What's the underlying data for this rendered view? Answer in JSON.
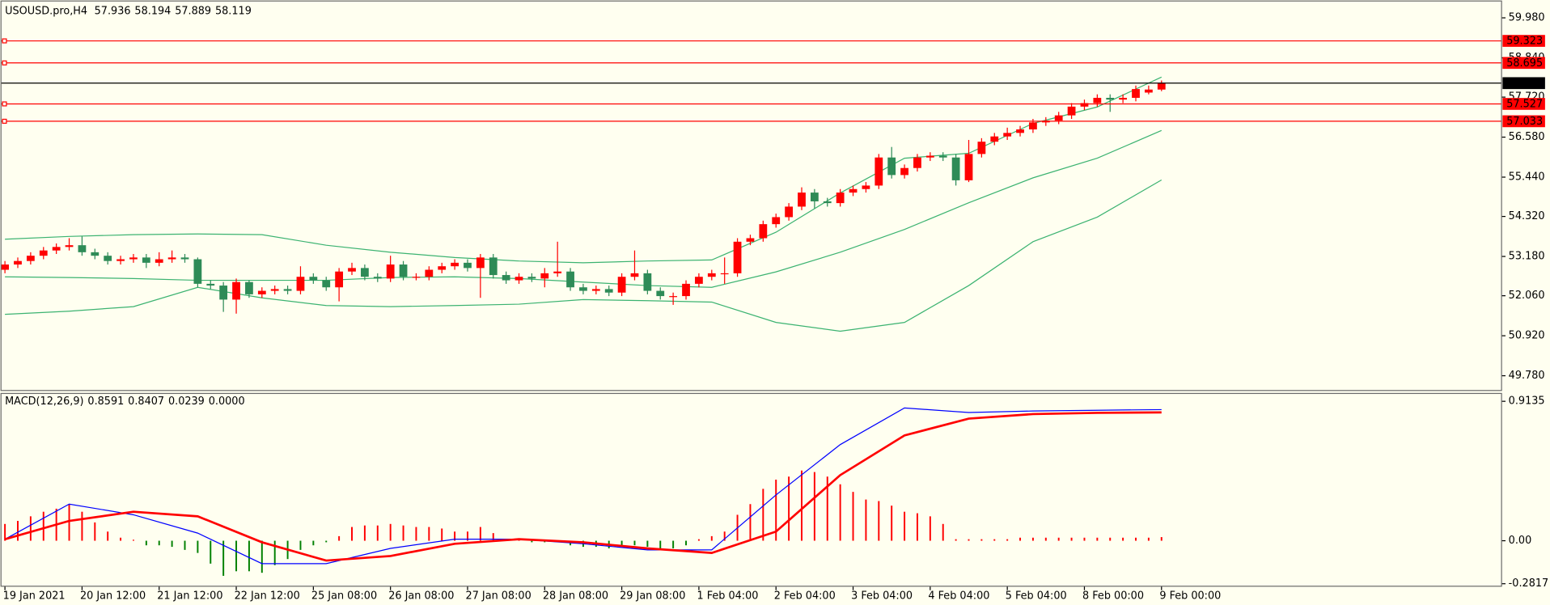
{
  "chart_data": [
    {
      "type": "candlestick",
      "title": "USOUSD.pro,H4",
      "categories": [
        "19 Jan 2021",
        null,
        null,
        null,
        null,
        null,
        "20 Jan 12:00",
        null,
        null,
        null,
        null,
        null,
        "21 Jan 12:00",
        null,
        null,
        null,
        null,
        null,
        "22 Jan 12:00",
        null,
        null,
        null,
        null,
        null,
        "25 Jan 08:00",
        null,
        null,
        null,
        null,
        null,
        "26 Jan 08:00",
        null,
        null,
        null,
        null,
        null,
        "27 Jan 08:00",
        null,
        null,
        null,
        null,
        null,
        "28 Jan 08:00",
        null,
        null,
        null,
        null,
        null,
        "29 Jan 08:00",
        null,
        null,
        null,
        null,
        null,
        "1 Feb 04:00",
        null,
        null,
        null,
        null,
        null,
        "2 Feb 04:00",
        null,
        null,
        null,
        null,
        null,
        "3 Feb 04:00",
        null,
        null,
        null,
        null,
        null,
        "4 Feb 04:00",
        null,
        null,
        null,
        null,
        null,
        "5 Feb 04:00",
        null,
        null,
        null,
        null,
        null,
        "8 Feb 00:00",
        null,
        null,
        null,
        null,
        null,
        "9 Feb 00:00"
      ],
      "open": [
        52.8,
        52.95,
        53.05,
        53.2,
        53.35,
        53.45,
        53.5,
        53.3,
        53.2,
        53.05,
        53.1,
        53.15,
        53.0,
        53.1,
        53.15,
        53.1,
        52.4,
        52.35,
        51.95,
        52.45,
        52.1,
        52.2,
        52.25,
        52.2,
        52.6,
        52.5,
        52.3,
        52.75,
        52.85,
        52.6,
        52.55,
        52.95,
        52.6,
        52.6,
        52.8,
        52.9,
        53.0,
        52.85,
        53.15,
        52.65,
        52.5,
        52.6,
        52.55,
        52.7,
        52.75,
        52.3,
        52.2,
        52.25,
        52.15,
        52.6,
        52.7,
        52.2,
        52.05,
        52.05,
        52.4,
        52.6,
        52.7,
        52.7,
        53.6,
        53.7,
        54.1,
        54.3,
        54.6,
        55.0,
        54.75,
        54.7,
        55.0,
        55.1,
        55.2,
        56.0,
        55.5,
        55.7,
        56.0,
        56.05,
        56.0,
        55.35,
        56.1,
        56.45,
        56.6,
        56.7,
        56.8,
        57.0,
        57.05,
        57.2,
        57.45,
        57.55,
        57.7,
        57.65,
        57.7,
        57.85,
        57.936
      ],
      "high": [
        53.05,
        53.15,
        53.3,
        53.45,
        53.55,
        53.7,
        53.75,
        53.4,
        53.3,
        53.2,
        53.25,
        53.25,
        53.3,
        53.35,
        53.25,
        53.15,
        52.5,
        52.45,
        52.55,
        52.5,
        52.3,
        52.35,
        52.35,
        52.9,
        52.7,
        52.6,
        52.85,
        53.0,
        52.95,
        52.7,
        53.2,
        53.05,
        52.7,
        52.9,
        53.0,
        53.1,
        53.1,
        53.25,
        53.25,
        52.75,
        52.7,
        52.7,
        52.85,
        53.6,
        52.85,
        52.4,
        52.35,
        52.35,
        52.7,
        53.35,
        52.8,
        52.3,
        52.15,
        52.5,
        52.7,
        52.8,
        53.15,
        53.7,
        53.8,
        54.2,
        54.4,
        54.7,
        55.15,
        55.1,
        54.85,
        55.1,
        55.2,
        55.3,
        56.1,
        56.3,
        55.8,
        56.1,
        56.15,
        56.15,
        56.1,
        56.5,
        56.55,
        56.7,
        56.85,
        56.9,
        57.1,
        57.15,
        57.3,
        57.55,
        57.65,
        57.8,
        57.8,
        57.8,
        58.05,
        58.05,
        58.194
      ],
      "low": [
        52.7,
        52.85,
        52.95,
        53.1,
        53.25,
        53.35,
        53.2,
        53.1,
        52.95,
        52.95,
        53.0,
        52.85,
        52.9,
        53.0,
        53.0,
        52.3,
        52.25,
        51.6,
        51.55,
        52.0,
        52.0,
        52.1,
        52.1,
        52.1,
        52.4,
        52.2,
        51.9,
        52.65,
        52.5,
        52.45,
        52.45,
        52.5,
        52.5,
        52.5,
        52.7,
        52.8,
        52.75,
        52.0,
        52.55,
        52.4,
        52.4,
        52.45,
        52.3,
        52.6,
        52.2,
        52.1,
        52.1,
        52.05,
        52.05,
        52.5,
        52.1,
        51.95,
        51.8,
        51.95,
        52.3,
        52.5,
        52.4,
        52.6,
        53.5,
        53.6,
        54.0,
        54.2,
        54.5,
        54.55,
        54.6,
        54.6,
        54.9,
        55.0,
        55.1,
        55.4,
        55.4,
        55.6,
        55.9,
        55.9,
        55.2,
        55.3,
        56.0,
        56.35,
        56.5,
        56.6,
        56.7,
        56.9,
        56.95,
        57.1,
        57.35,
        57.45,
        57.3,
        57.55,
        57.6,
        57.8,
        57.889
      ],
      "close": [
        52.95,
        53.05,
        53.2,
        53.35,
        53.45,
        53.5,
        53.3,
        53.2,
        53.05,
        53.1,
        53.15,
        53.0,
        53.1,
        53.15,
        53.1,
        52.4,
        52.35,
        51.95,
        52.45,
        52.1,
        52.2,
        52.25,
        52.2,
        52.6,
        52.5,
        52.3,
        52.75,
        52.85,
        52.6,
        52.55,
        52.95,
        52.6,
        52.6,
        52.8,
        52.9,
        53.0,
        52.85,
        53.15,
        52.65,
        52.5,
        52.6,
        52.55,
        52.7,
        52.75,
        52.3,
        52.2,
        52.25,
        52.15,
        52.6,
        52.7,
        52.2,
        52.05,
        52.05,
        52.4,
        52.6,
        52.7,
        52.7,
        53.6,
        53.7,
        54.1,
        54.3,
        54.6,
        55.0,
        54.75,
        54.7,
        55.0,
        55.1,
        55.2,
        56.0,
        55.5,
        55.7,
        56.0,
        56.05,
        56.0,
        55.35,
        56.1,
        56.45,
        56.6,
        56.7,
        56.8,
        57.0,
        57.05,
        57.2,
        57.45,
        57.55,
        57.7,
        57.65,
        57.7,
        57.95,
        57.936,
        58.119
      ],
      "up_color": "#ff0000",
      "down_color": "#2e8b57",
      "bands": {
        "color": "#3cb371",
        "x": [
          0,
          5,
          10,
          15,
          20,
          25,
          30,
          35,
          40,
          45,
          50,
          55,
          60,
          65,
          70,
          75,
          80,
          85,
          90
        ],
        "upper": [
          53.67,
          53.75,
          53.8,
          53.82,
          53.8,
          53.5,
          53.3,
          53.15,
          53.05,
          53.0,
          53.05,
          53.08,
          53.87,
          54.99,
          55.98,
          56.12,
          56.97,
          57.44,
          58.29
        ],
        "middle": [
          52.6,
          52.58,
          52.55,
          52.5,
          52.5,
          52.5,
          52.58,
          52.6,
          52.55,
          52.45,
          52.35,
          52.3,
          52.74,
          53.3,
          53.95,
          54.71,
          55.42,
          55.98,
          56.77
        ],
        "lower": [
          51.53,
          51.62,
          51.75,
          52.3,
          52.0,
          51.78,
          51.75,
          51.78,
          51.82,
          51.95,
          51.92,
          51.88,
          51.3,
          51.05,
          51.3,
          52.35,
          53.6,
          54.3,
          55.36
        ]
      },
      "levels": {
        "color": "#ff0000",
        "values": [
          59.323,
          58.695,
          57.527,
          57.033
        ]
      },
      "last_price_color": "#000000",
      "ylim": [
        49.36,
        60.46
      ],
      "yticks": [
        {
          "value": 59.98,
          "label": "59.980"
        },
        {
          "value": 58.84,
          "label": "58.840"
        },
        {
          "value": 57.72,
          "label": "57.720"
        },
        {
          "value": 56.58,
          "label": "56.580"
        },
        {
          "value": 55.44,
          "label": "55.440"
        },
        {
          "value": 54.32,
          "label": "54.320"
        },
        {
          "value": 53.18,
          "label": "53.180"
        },
        {
          "value": 52.06,
          "label": "52.060"
        },
        {
          "value": 50.92,
          "label": "50.920"
        },
        {
          "value": 49.78,
          "label": "49.780"
        }
      ]
    },
    {
      "type": "macd",
      "title": "MACD(12,26,9)",
      "histogram": {
        "up_color": "#ff0000",
        "down_color": "#008000",
        "values": [
          0.11,
          0.13,
          0.16,
          0.19,
          0.21,
          0.24,
          0.19,
          0.12,
          0.06,
          0.02,
          0,
          -0.03,
          -0.03,
          -0.04,
          -0.06,
          -0.08,
          -0.15,
          -0.23,
          -0.2,
          -0.2,
          -0.21,
          -0.16,
          -0.12,
          -0.06,
          -0.03,
          -0.01,
          0.03,
          0.09,
          0.1,
          0.1,
          0.11,
          0.1,
          0.09,
          0.09,
          0.08,
          0.06,
          0.06,
          0.09,
          0.05,
          0.01,
          0,
          -0.01,
          -0.01,
          -0.01,
          -0.03,
          -0.04,
          -0.04,
          -0.05,
          -0.04,
          -0.03,
          -0.04,
          -0.05,
          -0.05,
          -0.03,
          0.01,
          0.03,
          0.06,
          0.17,
          0.24,
          0.34,
          0.4,
          0.42,
          0.46,
          0.45,
          0.42,
          0.37,
          0.32,
          0.27,
          0.26,
          0.23,
          0.19,
          0.18,
          0.16,
          0.11,
          0.01,
          0.01,
          0.01,
          0.01,
          0.01,
          0.02,
          0.02,
          0.02,
          0.02,
          0.02,
          0.02,
          0.02,
          0.02,
          0.02,
          0.02,
          0.02,
          0.0239
        ]
      },
      "lines": [
        {
          "color": "#0000ff",
          "x": [
            0,
            5,
            10,
            15,
            20,
            25,
            30,
            35,
            40,
            45,
            50,
            55,
            60,
            65,
            70,
            75,
            80,
            85,
            90
          ],
          "values": [
            0.01,
            0.24,
            0.17,
            0.05,
            -0.15,
            -0.15,
            -0.05,
            0.01,
            0.01,
            -0.02,
            -0.06,
            -0.06,
            0.3,
            0.63,
            0.87,
            0.84,
            0.85,
            0.855,
            0.8591
          ]
        },
        {
          "color": "#ff0000",
          "x": [
            0,
            5,
            10,
            15,
            20,
            25,
            30,
            35,
            40,
            45,
            50,
            55,
            60,
            65,
            70,
            75,
            80,
            85,
            90
          ],
          "values": [
            0.01,
            0.13,
            0.19,
            0.16,
            -0.01,
            -0.13,
            -0.1,
            -0.02,
            0.01,
            -0.01,
            -0.05,
            -0.08,
            0.06,
            0.43,
            0.69,
            0.8,
            0.83,
            0.838,
            0.8407
          ]
        }
      ],
      "readout_tail": "0.0000",
      "ylim": [
        -0.298,
        0.965
      ],
      "yticks": [
        0.9135,
        {
          "value": 0,
          "label": "0.00"
        },
        -0.2817
      ]
    }
  ],
  "background": "#fffff0"
}
